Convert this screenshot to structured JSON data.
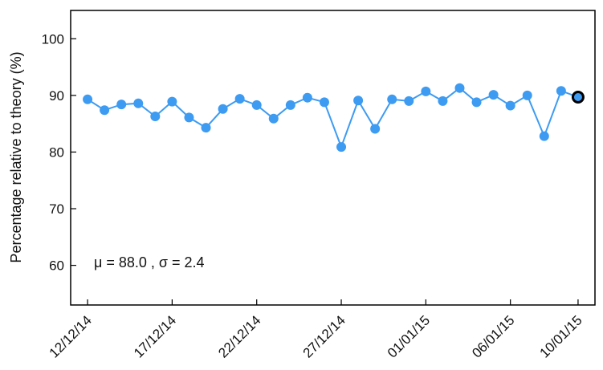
{
  "chart_data": {
    "type": "line",
    "ylabel": "Percentage relative to theory (%)",
    "xlabel": "",
    "title": "",
    "ylim": [
      53,
      105
    ],
    "yticks": [
      60,
      70,
      80,
      90,
      100
    ],
    "xlim": [
      "2014-12-11",
      "2015-01-11"
    ],
    "xticks": [
      {
        "date": "2014-12-12",
        "label": "12/12/14"
      },
      {
        "date": "2014-12-17",
        "label": "17/12/14"
      },
      {
        "date": "2014-12-22",
        "label": "22/12/14"
      },
      {
        "date": "2014-12-27",
        "label": "27/12/14"
      },
      {
        "date": "2015-01-01",
        "label": "01/01/15"
      },
      {
        "date": "2015-01-06",
        "label": "06/01/15"
      },
      {
        "date": "2015-01-10",
        "label": "10/01/15"
      }
    ],
    "series": [
      {
        "color": "#3d9bf2",
        "points": [
          {
            "x": "2014-12-12",
            "y": 89.3
          },
          {
            "x": "2014-12-13",
            "y": 87.4
          },
          {
            "x": "2014-12-14",
            "y": 88.4
          },
          {
            "x": "2014-12-15",
            "y": 88.6
          },
          {
            "x": "2014-12-16",
            "y": 86.3
          },
          {
            "x": "2014-12-17",
            "y": 88.9
          },
          {
            "x": "2014-12-18",
            "y": 86.1
          },
          {
            "x": "2014-12-19",
            "y": 84.3
          },
          {
            "x": "2014-12-20",
            "y": 87.6
          },
          {
            "x": "2014-12-21",
            "y": 89.4
          },
          {
            "x": "2014-12-22",
            "y": 88.3
          },
          {
            "x": "2014-12-23",
            "y": 85.9
          },
          {
            "x": "2014-12-24",
            "y": 88.3
          },
          {
            "x": "2014-12-25",
            "y": 89.6
          },
          {
            "x": "2014-12-26",
            "y": 88.8
          },
          {
            "x": "2014-12-27",
            "y": 80.9
          },
          {
            "x": "2014-12-28",
            "y": 89.1
          },
          {
            "x": "2014-12-29",
            "y": 84.1
          },
          {
            "x": "2014-12-30",
            "y": 89.3
          },
          {
            "x": "2014-12-31",
            "y": 89.0
          },
          {
            "x": "2015-01-01",
            "y": 90.7
          },
          {
            "x": "2015-01-02",
            "y": 89.0
          },
          {
            "x": "2015-01-03",
            "y": 91.3
          },
          {
            "x": "2015-01-04",
            "y": 88.8
          },
          {
            "x": "2015-01-05",
            "y": 90.1
          },
          {
            "x": "2015-01-06",
            "y": 88.2
          },
          {
            "x": "2015-01-07",
            "y": 90.0
          },
          {
            "x": "2015-01-08",
            "y": 82.8
          },
          {
            "x": "2015-01-09",
            "y": 90.8
          },
          {
            "x": "2015-01-10",
            "y": 89.7
          }
        ],
        "highlight_last": true
      }
    ],
    "annotation": "μ = 88.0 , σ = 2.4",
    "grid": false,
    "legend": "none"
  }
}
